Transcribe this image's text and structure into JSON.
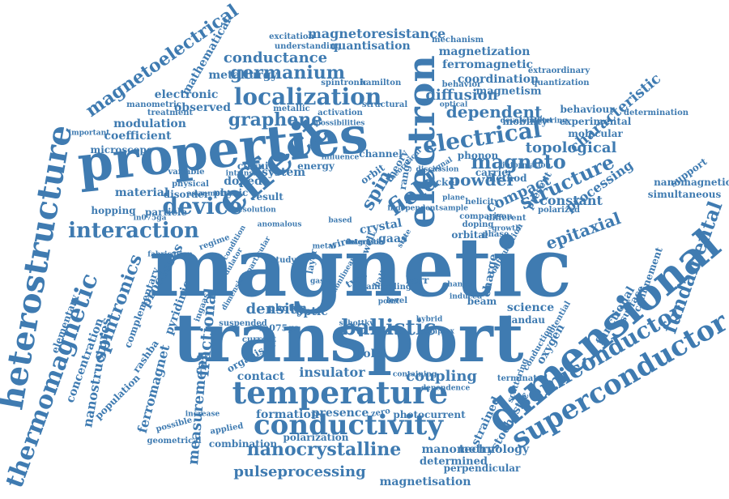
{
  "words": [
    {
      "text": "magnetic",
      "color": "#3f7bb1"
    },
    {
      "text": "transport",
      "color": "#3f7bb1"
    },
    {
      "text": "properties",
      "color": "#3f7bb1"
    },
    {
      "text": "dimensional",
      "color": "#3f7bb1"
    },
    {
      "text": "electron",
      "color": "#3f7bb1"
    },
    {
      "text": "effect",
      "color": "#3f7bb1"
    },
    {
      "text": "temperature",
      "color": "#3f7bb1"
    },
    {
      "text": "conductivity",
      "color": "#3f7bb1"
    },
    {
      "text": "superconductor",
      "color": "#3f7bb1"
    },
    {
      "text": "semiconductor",
      "color": "#3f7bb1"
    },
    {
      "text": "heterostructure",
      "color": "#3f7bb1"
    },
    {
      "text": "thermomagnetic",
      "color": "#3f7bb1"
    },
    {
      "text": "localization",
      "color": "#3f7bb1"
    },
    {
      "text": "interaction",
      "color": "#3f7bb1"
    },
    {
      "text": "device",
      "color": "#3f7bb1"
    },
    {
      "text": "electrical",
      "color": "#3f7bb1"
    },
    {
      "text": "magneto",
      "color": "#3f7bb1"
    },
    {
      "text": "nanocrystalline",
      "color": "#3f7bb1"
    },
    {
      "text": "ballistic",
      "color": "#3f7bb1"
    },
    {
      "text": "spintronics",
      "color": "#3f7bb1"
    },
    {
      "text": "magnetoelectrical",
      "color": "#3f7bb1"
    },
    {
      "text": "field",
      "color": "#3f7bb1"
    },
    {
      "text": "spin",
      "color": "#3f7bb1"
    },
    {
      "text": "graphene",
      "color": "#3f7bb1"
    },
    {
      "text": "germanium",
      "color": "#3f7bb1"
    },
    {
      "text": "conductance",
      "color": "#3f7bb1"
    },
    {
      "text": "structure",
      "color": "#3f7bb1"
    },
    {
      "text": "topological",
      "color": "#3f7bb1"
    },
    {
      "text": "powder",
      "color": "#3f7bb1"
    },
    {
      "text": "compact",
      "color": "#3f7bb1"
    },
    {
      "text": "dependent",
      "color": "#3f7bb1"
    },
    {
      "text": "diffusion",
      "color": "#3f7bb1"
    },
    {
      "text": "fundamental",
      "color": "#3f7bb1"
    },
    {
      "text": "characteristic",
      "color": "#3f7bb1"
    },
    {
      "text": "pulseprocessing",
      "color": "#3f7bb1"
    },
    {
      "text": "coupling",
      "color": "#3f7bb1"
    },
    {
      "text": "density",
      "color": "#3f7bb1"
    },
    {
      "text": "fractional",
      "color": "#3f7bb1"
    },
    {
      "text": "measurement",
      "color": "#3f7bb1"
    },
    {
      "text": "ferromagnet",
      "color": "#3f7bb1"
    },
    {
      "text": "nanostructures",
      "color": "#3f7bb1"
    },
    {
      "text": "magnetoresistance",
      "color": "#3f7bb1"
    },
    {
      "text": "quantisation",
      "color": "#3f7bb1"
    },
    {
      "text": "magnetization",
      "color": "#3f7bb1"
    },
    {
      "text": "ferromagnetic",
      "color": "#3f7bb1"
    },
    {
      "text": "coordination",
      "color": "#3f7bb1"
    },
    {
      "text": "magnetism",
      "color": "#3f7bb1"
    },
    {
      "text": "metallurgy",
      "color": "#3f7bb1"
    },
    {
      "text": "mathematical",
      "color": "#3f7bb1"
    },
    {
      "text": "electronic",
      "color": "#3f7bb1"
    },
    {
      "text": "observed",
      "color": "#3f7bb1"
    },
    {
      "text": "modulation",
      "color": "#3f7bb1"
    },
    {
      "text": "coefficient",
      "color": "#3f7bb1"
    },
    {
      "text": "microscope",
      "color": "#3f7bb1"
    },
    {
      "text": "material",
      "color": "#3f7bb1"
    },
    {
      "text": "hopping",
      "color": "#3f7bb1"
    },
    {
      "text": "particle",
      "color": "#3f7bb1"
    },
    {
      "text": "system",
      "color": "#3f7bb1"
    },
    {
      "text": "doped",
      "color": "#3f7bb1"
    },
    {
      "text": "physic",
      "color": "#3f7bb1"
    },
    {
      "text": "disorder",
      "color": "#3f7bb1"
    },
    {
      "text": "result",
      "color": "#3f7bb1"
    },
    {
      "text": "energy",
      "color": "#3f7bb1"
    },
    {
      "text": "orbit",
      "color": "#3f7bb1"
    },
    {
      "text": "epitaxial",
      "color": "#3f7bb1"
    },
    {
      "text": "constant",
      "color": "#3f7bb1"
    },
    {
      "text": "processing",
      "color": "#3f7bb1"
    },
    {
      "text": "science",
      "color": "#3f7bb1"
    },
    {
      "text": "oxygen",
      "color": "#3f7bb1"
    },
    {
      "text": "landau",
      "color": "#3f7bb1"
    },
    {
      "text": "hole",
      "color": "#3f7bb1"
    },
    {
      "text": "optic",
      "color": "#3f7bb1"
    },
    {
      "text": "insulator",
      "color": "#3f7bb1"
    },
    {
      "text": "contact",
      "color": "#3f7bb1"
    },
    {
      "text": "presence",
      "color": "#3f7bb1"
    },
    {
      "text": "formation",
      "color": "#3f7bb1"
    },
    {
      "text": "technology",
      "color": "#3f7bb1"
    },
    {
      "text": "manometry",
      "color": "#3f7bb1"
    },
    {
      "text": "magnetisation",
      "color": "#3f7bb1"
    },
    {
      "text": "determined",
      "color": "#3f7bb1"
    },
    {
      "text": "perpendicular",
      "color": "#3f7bb1"
    },
    {
      "text": "strained",
      "color": "#3f7bb1"
    },
    {
      "text": "stochastic",
      "color": "#3f7bb1"
    },
    {
      "text": "functional",
      "color": "#3f7bb1"
    },
    {
      "text": "surface",
      "color": "#3f7bb1"
    },
    {
      "text": "confinement",
      "color": "#3f7bb1"
    },
    {
      "text": "simultaneous",
      "color": "#3f7bb1"
    },
    {
      "text": "nanomagnetic",
      "color": "#3f7bb1"
    },
    {
      "text": "support",
      "color": "#3f7bb1"
    },
    {
      "text": "behaviour",
      "color": "#3f7bb1"
    },
    {
      "text": "mobility",
      "color": "#3f7bb1"
    },
    {
      "text": "experimental",
      "color": "#3f7bb1"
    },
    {
      "text": "molecular",
      "color": "#3f7bb1"
    },
    {
      "text": "determination",
      "color": "#3f7bb1"
    },
    {
      "text": "quantization",
      "color": "#3f7bb1"
    },
    {
      "text": "extraordinary",
      "color": "#3f7bb1"
    },
    {
      "text": "behavior",
      "color": "#3f7bb1"
    },
    {
      "text": "mechanism",
      "color": "#3f7bb1"
    },
    {
      "text": "hamilton",
      "color": "#3f7bb1"
    },
    {
      "text": "excitation",
      "color": "#3f7bb1"
    },
    {
      "text": "understanding",
      "color": "#3f7bb1"
    },
    {
      "text": "manometric",
      "color": "#3f7bb1"
    },
    {
      "text": "treatment",
      "color": "#3f7bb1"
    },
    {
      "text": "activation",
      "color": "#3f7bb1"
    },
    {
      "text": "metallic",
      "color": "#3f7bb1"
    },
    {
      "text": "structural",
      "color": "#3f7bb1"
    },
    {
      "text": "spintronic",
      "color": "#3f7bb1"
    },
    {
      "text": "concentration",
      "color": "#3f7bb1"
    },
    {
      "text": "elementary",
      "color": "#3f7bb1"
    },
    {
      "text": "processes",
      "color": "#3f7bb1"
    },
    {
      "text": "pyridinic",
      "color": "#3f7bb1"
    },
    {
      "text": "rashba",
      "color": "#3f7bb1"
    },
    {
      "text": "population",
      "color": "#3f7bb1"
    },
    {
      "text": "complementary",
      "color": "#3f7bb1"
    },
    {
      "text": "possible",
      "color": "#3f7bb1"
    },
    {
      "text": "geometrical",
      "color": "#3f7bb1"
    },
    {
      "text": "combination",
      "color": "#3f7bb1"
    },
    {
      "text": "polarization",
      "color": "#3f7bb1"
    },
    {
      "text": "photocurrent",
      "color": "#3f7bb1"
    },
    {
      "text": "applied",
      "color": "#3f7bb1"
    },
    {
      "text": "organised",
      "color": "#3f7bb1"
    },
    {
      "text": "current",
      "color": "#3f7bb1"
    },
    {
      "text": "in075ga",
      "color": "#3f7bb1"
    },
    {
      "text": "ingaas",
      "color": "#3f7bb1"
    },
    {
      "text": "suspended",
      "color": "#3f7bb1"
    },
    {
      "text": "regime",
      "color": "#3f7bb1"
    },
    {
      "text": "crystal",
      "color": "#3f7bb1"
    },
    {
      "text": "gaas",
      "color": "#3f7bb1"
    },
    {
      "text": "well",
      "color": "#3f7bb1"
    },
    {
      "text": "wire",
      "color": "#3f7bb1"
    },
    {
      "text": "type",
      "color": "#3f7bb1"
    },
    {
      "text": "hall",
      "color": "#3f7bb1"
    },
    {
      "text": "photon",
      "color": "#3f7bb1"
    },
    {
      "text": "kerr",
      "color": "#3f7bb1"
    },
    {
      "text": "level",
      "color": "#3f7bb1"
    },
    {
      "text": "beam",
      "color": "#3f7bb1"
    },
    {
      "text": "orbital",
      "color": "#3f7bb1"
    },
    {
      "text": "phase",
      "color": "#3f7bb1"
    },
    {
      "text": "charge",
      "color": "#3f7bb1"
    },
    {
      "text": "present",
      "color": "#3f7bb1"
    },
    {
      "text": "phonon",
      "color": "#3f7bb1"
    },
    {
      "text": "method",
      "color": "#3f7bb1"
    },
    {
      "text": "carrier",
      "color": "#3f7bb1"
    },
    {
      "text": "nickel",
      "color": "#3f7bb1"
    },
    {
      "text": "channel",
      "color": "#3f7bb1"
    },
    {
      "text": "range",
      "color": "#3f7bb1"
    },
    {
      "text": "theory",
      "color": "#3f7bb1"
    },
    {
      "text": "circuit",
      "color": "#3f7bb1"
    },
    {
      "text": "variable",
      "color": "#3f7bb1"
    },
    {
      "text": "physical",
      "color": "#3f7bb1"
    },
    {
      "text": "intrinsic",
      "color": "#3f7bb1"
    },
    {
      "text": "in075ga",
      "color": "#3f7bb1"
    },
    {
      "text": "annealing",
      "color": "#3f7bb1"
    },
    {
      "text": "point",
      "color": "#3f7bb1"
    },
    {
      "text": "study",
      "color": "#3f7bb1"
    },
    {
      "text": "layer",
      "color": "#3f7bb1"
    },
    {
      "text": "zero",
      "color": "#3f7bb1"
    },
    {
      "text": "scattering",
      "color": "#3f7bb1"
    },
    {
      "text": "conduction",
      "color": "#3f7bb1"
    },
    {
      "text": "configuration",
      "color": "#3f7bb1"
    },
    {
      "text": "potential",
      "color": "#3f7bb1"
    },
    {
      "text": "comparison",
      "color": "#3f7bb1"
    },
    {
      "text": "doping",
      "color": "#3f7bb1"
    },
    {
      "text": "growth",
      "color": "#3f7bb1"
    },
    {
      "text": "helicity",
      "color": "#3f7bb1"
    },
    {
      "text": "different",
      "color": "#3f7bb1"
    },
    {
      "text": "polarized",
      "color": "#3f7bb1"
    },
    {
      "text": "terminated",
      "color": "#3f7bb1"
    },
    {
      "text": "dependence",
      "color": "#3f7bb1"
    },
    {
      "text": "containing",
      "color": "#3f7bb1"
    },
    {
      "text": "particular",
      "color": "#3f7bb1"
    },
    {
      "text": "schottky",
      "color": "#3f7bb1"
    },
    {
      "text": "hybrid",
      "color": "#3f7bb1"
    },
    {
      "text": "increase",
      "color": "#3f7bb1"
    },
    {
      "text": "independent",
      "color": "#3f7bb1"
    },
    {
      "text": "plane",
      "color": "#3f7bb1"
    },
    {
      "text": "sample",
      "color": "#3f7bb1"
    },
    {
      "text": "induced",
      "color": "#3f7bb1"
    },
    {
      "text": "change",
      "color": "#3f7bb1"
    },
    {
      "text": "gases",
      "color": "#3f7bb1"
    },
    {
      "text": "metal",
      "color": "#3f7bb1"
    },
    {
      "text": "based",
      "color": "#3f7bb1"
    },
    {
      "text": "state",
      "color": "#3f7bb1"
    },
    {
      "text": "signal",
      "color": "#3f7bb1"
    },
    {
      "text": "optical",
      "color": "#3f7bb1"
    },
    {
      "text": "filtering",
      "color": "#3f7bb1"
    },
    {
      "text": "development",
      "color": "#3f7bb1"
    },
    {
      "text": "information",
      "color": "#3f7bb1"
    },
    {
      "text": "discussion",
      "color": "#3f7bb1"
    },
    {
      "text": "important",
      "color": "#3f7bb1"
    },
    {
      "text": "resolution",
      "color": "#3f7bb1"
    },
    {
      "text": "possibilities",
      "color": "#3f7bb1"
    },
    {
      "text": "theoretical",
      "color": "#3f7bb1"
    },
    {
      "text": "fabrication",
      "color": "#3f7bb1"
    },
    {
      "text": "anomalous",
      "color": "#3f7bb1"
    },
    {
      "text": "dimension",
      "color": "#3f7bb1"
    },
    {
      "text": "asymmetric",
      "color": "#3f7bb1"
    },
    {
      "text": "influence",
      "color": "#3f7bb1"
    },
    {
      "text": "modulator",
      "color": "#3f7bb1"
    },
    {
      "text": "condition",
      "color": "#3f7bb1"
    },
    {
      "text": "complex",
      "color": "#3f7bb1"
    },
    {
      "text": "nonlinear",
      "color": "#3f7bb1"
    },
    {
      "text": "interface",
      "color": "#3f7bb1"
    },
    {
      "text": "magnetic",
      "color": "#3f7bb1"
    },
    {
      "text": "detection",
      "color": "#3f7bb1"
    }
  ]
}
